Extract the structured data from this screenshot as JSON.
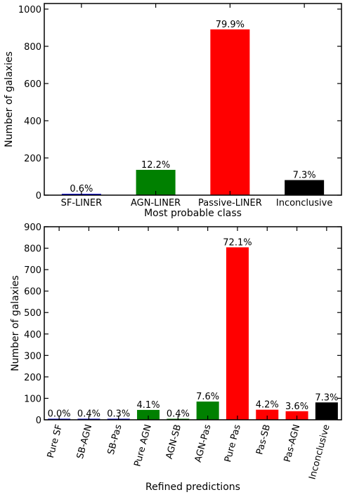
{
  "chart_data": [
    {
      "type": "bar",
      "xlabel": "Most probable class",
      "ylabel": "Number of galaxies",
      "ylim": [
        0,
        1030
      ],
      "yticks": [
        0,
        200,
        400,
        600,
        800,
        1000
      ],
      "categories": [
        "SF-LINER",
        "AGN-LINER",
        "Passive-LINER",
        "Inconclusive"
      ],
      "values": [
        7,
        136,
        891,
        81
      ],
      "bar_labels": [
        "0.6%",
        "12.2%",
        "79.9%",
        "7.3%"
      ],
      "colors": [
        "#0000cc",
        "#008000",
        "#ff0000",
        "#000000"
      ],
      "grid": false,
      "legend": "none"
    },
    {
      "type": "bar",
      "xlabel": "Refined predictions",
      "ylabel": "Number of galaxies",
      "ylim": [
        0,
        900
      ],
      "yticks": [
        0,
        100,
        200,
        300,
        400,
        500,
        600,
        700,
        800,
        900
      ],
      "categories": [
        "Pure SF",
        "SB-AGN",
        "SB-Pas",
        "Pure AGN",
        "AGN-SB",
        "AGN-Pas",
        "Pure Pas",
        "Pas-SB",
        "Pas-AGN",
        "Inconclusive"
      ],
      "values": [
        0,
        4,
        3,
        46,
        4,
        85,
        804,
        47,
        40,
        81
      ],
      "bar_labels": [
        "0.0%",
        "0.4%",
        "0.3%",
        "4.1%",
        "0.4%",
        "7.6%",
        "72.1%",
        "4.2%",
        "3.6%",
        "7.3%"
      ],
      "colors": [
        "#0000cc",
        "#0000cc",
        "#0000cc",
        "#008000",
        "#008000",
        "#008000",
        "#ff0000",
        "#ff0000",
        "#ff0000",
        "#000000"
      ],
      "grid": false,
      "legend": "none"
    }
  ]
}
